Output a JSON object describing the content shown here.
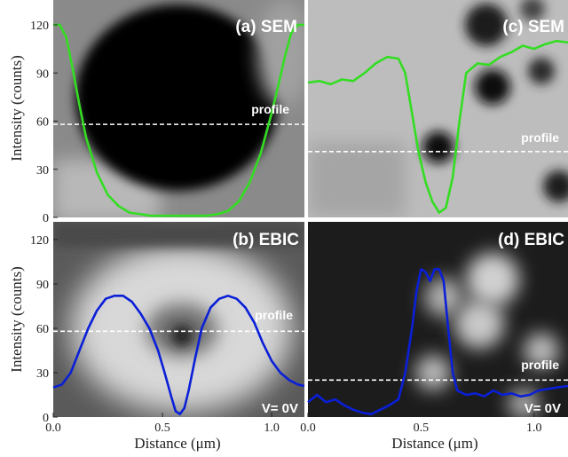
{
  "colors": {
    "sem_curve": "#33dd22",
    "ebic_curve": "#0a1fd8",
    "profile_line": "#ffffff",
    "text_on_image": "#ffffff"
  },
  "chart_data": [
    {
      "type": "line",
      "panel": "(a) SEM",
      "overlay_label": "profile",
      "xlabel": "",
      "ylabel": "Intensity (counts)",
      "xlim": [
        0.0,
        1.15
      ],
      "ylim": [
        0,
        125
      ],
      "y_ticks": [
        "0",
        "30",
        "60",
        "90",
        "120"
      ],
      "x_ticks": [],
      "profile_y": 58,
      "background": "dark-pit-on-grey",
      "series": [
        {
          "color": "#33dd22",
          "x": [
            0.0,
            0.03,
            0.06,
            0.09,
            0.12,
            0.15,
            0.2,
            0.25,
            0.3,
            0.35,
            0.4,
            0.45,
            0.5,
            0.55,
            0.6,
            0.65,
            0.7,
            0.75,
            0.8,
            0.85,
            0.9,
            0.95,
            1.0,
            1.03,
            1.06,
            1.09,
            1.12,
            1.15
          ],
          "y": [
            120,
            120,
            112,
            92,
            70,
            50,
            28,
            14,
            7,
            3,
            2,
            1,
            1,
            1,
            1,
            1,
            1,
            2,
            4,
            10,
            22,
            40,
            65,
            82,
            100,
            115,
            120,
            120
          ]
        }
      ]
    },
    {
      "type": "line",
      "panel": "(c) SEM",
      "overlay_label": "profile",
      "xlabel": "",
      "ylabel": "",
      "xlim": [
        0.0,
        1.15
      ],
      "ylim": [
        0,
        125
      ],
      "y_ticks": [],
      "x_ticks": [],
      "profile_y": 41,
      "background": "small-dark-spots-on-light-grey",
      "series": [
        {
          "color": "#33dd22",
          "x": [
            0.0,
            0.05,
            0.1,
            0.15,
            0.2,
            0.25,
            0.3,
            0.35,
            0.4,
            0.43,
            0.46,
            0.49,
            0.52,
            0.55,
            0.58,
            0.61,
            0.64,
            0.67,
            0.7,
            0.75,
            0.8,
            0.85,
            0.9,
            0.95,
            1.0,
            1.05,
            1.1,
            1.15
          ],
          "y": [
            84,
            85,
            83,
            86,
            85,
            90,
            96,
            100,
            99,
            90,
            65,
            40,
            22,
            10,
            3,
            6,
            25,
            60,
            90,
            96,
            95,
            100,
            103,
            107,
            105,
            108,
            110,
            109
          ]
        }
      ]
    },
    {
      "type": "line",
      "panel": "(b) EBIC",
      "overlay_label": "profile",
      "voltage_label": "V= 0V",
      "xlabel": "Distance (μm)",
      "ylabel": "Intensity (counts)",
      "xlim": [
        0.0,
        1.15
      ],
      "ylim": [
        0,
        125
      ],
      "y_ticks": [
        "0",
        "30",
        "60",
        "90",
        "120"
      ],
      "x_ticks": [
        "0.0",
        "0.5",
        "1.0"
      ],
      "x_tick_values": [
        0.0,
        0.5,
        1.0
      ],
      "profile_y": 58,
      "background": "bright-ring-on-dark-grey",
      "series": [
        {
          "color": "#0a1fd8",
          "x": [
            0.0,
            0.04,
            0.08,
            0.12,
            0.16,
            0.2,
            0.24,
            0.28,
            0.32,
            0.36,
            0.4,
            0.44,
            0.48,
            0.51,
            0.54,
            0.56,
            0.58,
            0.6,
            0.62,
            0.65,
            0.68,
            0.72,
            0.76,
            0.8,
            0.84,
            0.88,
            0.92,
            0.96,
            1.0,
            1.04,
            1.08,
            1.12,
            1.15
          ],
          "y": [
            20,
            22,
            30,
            45,
            60,
            72,
            80,
            82,
            82,
            78,
            70,
            60,
            45,
            30,
            14,
            4,
            2,
            6,
            18,
            40,
            60,
            74,
            80,
            82,
            80,
            74,
            64,
            50,
            38,
            30,
            25,
            22,
            21
          ]
        }
      ]
    },
    {
      "type": "line",
      "panel": "(d) EBIC",
      "overlay_label": "profile",
      "voltage_label": "V= 0V",
      "xlabel": "Distance (μm)",
      "ylabel": "",
      "xlim": [
        0.0,
        1.15
      ],
      "ylim": [
        0,
        125
      ],
      "y_ticks": [],
      "x_ticks": [
        "0.0",
        "0.5",
        "1.0"
      ],
      "x_tick_values": [
        0.0,
        0.5,
        1.0
      ],
      "profile_y": 25,
      "background": "bright-spots-on-dark",
      "series": [
        {
          "color": "#0a1fd8",
          "x": [
            0.0,
            0.04,
            0.08,
            0.12,
            0.16,
            0.2,
            0.24,
            0.28,
            0.32,
            0.36,
            0.4,
            0.43,
            0.46,
            0.48,
            0.5,
            0.52,
            0.54,
            0.56,
            0.58,
            0.6,
            0.62,
            0.64,
            0.66,
            0.7,
            0.74,
            0.78,
            0.82,
            0.86,
            0.9,
            0.94,
            0.98,
            1.02,
            1.06,
            1.1,
            1.15
          ],
          "y": [
            10,
            15,
            10,
            12,
            8,
            5,
            3,
            2,
            5,
            8,
            12,
            30,
            60,
            85,
            100,
            98,
            92,
            100,
            100,
            92,
            60,
            30,
            18,
            15,
            16,
            14,
            18,
            15,
            16,
            14,
            15,
            18,
            19,
            20,
            21
          ]
        }
      ]
    }
  ]
}
